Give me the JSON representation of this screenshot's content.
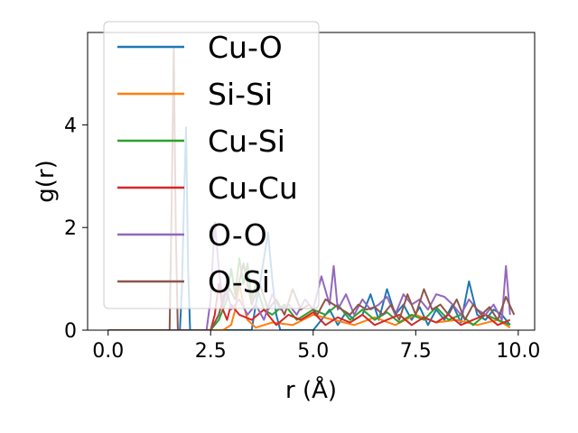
{
  "chart_data": {
    "type": "line",
    "xlabel": "r (Å)",
    "ylabel": "g(r)",
    "xlim": [
      -0.5,
      10.4
    ],
    "ylim": [
      0,
      5.8
    ],
    "xticks": [
      "0.0",
      "2.5",
      "5.0",
      "7.5",
      "10.0"
    ],
    "yticks": [
      "0",
      "2",
      "4"
    ],
    "grid": false,
    "legend": "upper-left",
    "series": [
      {
        "name": "Cu-O",
        "color": "#1f77b4",
        "x": [
          0.0,
          1.6,
          1.75,
          1.8,
          1.85,
          1.9,
          1.95,
          2.0,
          2.05,
          2.1,
          3.5,
          3.6,
          3.7,
          3.8,
          3.9,
          4.0,
          4.1,
          4.2,
          5.0,
          5.2,
          5.4,
          5.6,
          5.8,
          6.0,
          6.2,
          6.4,
          6.6,
          6.8,
          7.0,
          7.2,
          7.4,
          7.6,
          7.8,
          8.0,
          8.2,
          8.4,
          8.6,
          8.8,
          9.0,
          9.2,
          9.4,
          9.6,
          9.8
        ],
        "y": [
          0.0,
          0.0,
          0.0,
          0.8,
          2.5,
          3.95,
          1.2,
          0.0,
          0.0,
          0.0,
          0.0,
          0.5,
          0.9,
          1.4,
          1.9,
          1.0,
          0.3,
          0.0,
          0.0,
          0.2,
          0.4,
          0.1,
          0.35,
          0.2,
          0.3,
          0.7,
          0.2,
          0.8,
          0.3,
          0.5,
          0.2,
          0.45,
          0.1,
          0.4,
          0.2,
          0.5,
          0.15,
          0.95,
          0.3,
          0.2,
          0.4,
          0.3,
          0.1
        ]
      },
      {
        "name": "Si-Si",
        "color": "#ff7f0e",
        "x": [
          0.0,
          2.8,
          3.0,
          3.1,
          3.2,
          3.3,
          3.4,
          3.6,
          4.0,
          4.5,
          5.0,
          5.5,
          6.0,
          6.5,
          7.0,
          7.5,
          8.0,
          8.5,
          9.0,
          9.5,
          9.8
        ],
        "y": [
          0.0,
          0.0,
          0.1,
          0.4,
          0.9,
          0.5,
          0.2,
          0.05,
          0.15,
          0.1,
          0.3,
          0.2,
          0.1,
          0.25,
          0.1,
          0.3,
          0.15,
          0.2,
          0.1,
          0.2,
          0.05
        ]
      },
      {
        "name": "Cu-Si",
        "color": "#2ca02c",
        "x": [
          0.0,
          2.5,
          2.7,
          2.9,
          3.0,
          3.1,
          3.2,
          3.3,
          3.4,
          3.5,
          3.6,
          3.8,
          4.0,
          4.3,
          4.6,
          5.0,
          5.3,
          5.6,
          5.9,
          6.2,
          6.5,
          6.8,
          7.1,
          7.4,
          7.7,
          8.0,
          8.3,
          8.6,
          8.9,
          9.2,
          9.5,
          9.8
        ],
        "y": [
          0.0,
          0.0,
          0.2,
          0.6,
          1.2,
          0.7,
          1.4,
          0.9,
          1.3,
          0.6,
          0.9,
          0.4,
          0.3,
          0.5,
          0.2,
          0.4,
          0.3,
          0.5,
          0.2,
          0.4,
          0.2,
          0.35,
          0.15,
          0.3,
          0.2,
          0.45,
          0.2,
          0.3,
          0.1,
          0.3,
          0.2,
          0.1
        ]
      },
      {
        "name": "Cu-Cu",
        "color": "#d62728",
        "x": [
          0.0,
          2.5,
          2.6,
          2.7,
          2.8,
          2.9,
          3.0,
          3.2,
          3.5,
          3.8,
          4.1,
          4.4,
          4.7,
          5.0,
          5.3,
          5.6,
          5.9,
          6.2,
          6.5,
          6.8,
          7.1,
          7.4,
          7.7,
          8.0,
          8.3,
          8.6,
          8.9,
          9.2,
          9.5,
          9.8
        ],
        "y": [
          0.0,
          0.0,
          0.3,
          0.9,
          0.4,
          0.2,
          0.5,
          0.3,
          0.2,
          0.4,
          0.1,
          0.3,
          0.2,
          0.35,
          0.1,
          0.25,
          0.15,
          0.3,
          0.1,
          0.2,
          0.3,
          0.1,
          0.25,
          0.15,
          0.3,
          0.1,
          0.2,
          0.3,
          0.1,
          0.2
        ]
      },
      {
        "name": "O-O",
        "color": "#9467bd",
        "x": [
          0.0,
          2.4,
          2.5,
          2.6,
          2.7,
          2.8,
          2.9,
          3.0,
          3.2,
          3.4,
          3.6,
          3.8,
          4.0,
          4.2,
          4.4,
          4.6,
          4.8,
          5.0,
          5.2,
          5.4,
          5.5,
          5.6,
          5.8,
          6.0,
          6.2,
          6.4,
          6.6,
          6.8,
          7.0,
          7.2,
          7.4,
          7.6,
          7.8,
          8.0,
          8.2,
          8.4,
          8.6,
          8.8,
          9.0,
          9.2,
          9.4,
          9.6,
          9.7,
          9.8
        ],
        "y": [
          0.0,
          0.0,
          0.6,
          2.1,
          1.2,
          0.5,
          0.8,
          0.4,
          0.6,
          0.3,
          0.5,
          0.2,
          0.7,
          0.4,
          0.5,
          0.3,
          0.6,
          0.4,
          1.05,
          0.5,
          1.25,
          0.4,
          0.7,
          0.3,
          0.6,
          0.4,
          0.5,
          0.65,
          0.3,
          0.7,
          0.5,
          0.6,
          0.4,
          0.7,
          0.65,
          0.5,
          0.3,
          0.6,
          0.4,
          0.3,
          0.5,
          0.2,
          1.25,
          0.3
        ]
      },
      {
        "name": "O-Si",
        "color": "#8c564b",
        "x": [
          0.0,
          1.5,
          1.55,
          1.6,
          1.65,
          1.7,
          1.8,
          2.5,
          2.7,
          2.9,
          3.1,
          3.3,
          3.5,
          3.7,
          3.9,
          4.1,
          4.3,
          4.5,
          4.7,
          4.9,
          5.1,
          5.3,
          5.5,
          5.7,
          5.9,
          6.1,
          6.3,
          6.5,
          6.7,
          6.9,
          7.1,
          7.3,
          7.5,
          7.7,
          7.9,
          8.1,
          8.3,
          8.5,
          8.7,
          8.9,
          9.1,
          9.3,
          9.5,
          9.7,
          9.9
        ],
        "y": [
          0.0,
          0.0,
          2.5,
          5.5,
          2.0,
          0.0,
          0.0,
          0.0,
          0.3,
          0.9,
          0.6,
          1.3,
          0.5,
          0.9,
          0.4,
          0.6,
          0.3,
          0.8,
          0.4,
          0.5,
          0.3,
          0.6,
          0.5,
          0.4,
          0.3,
          0.5,
          0.4,
          0.45,
          0.3,
          0.5,
          0.2,
          0.7,
          0.3,
          0.8,
          0.4,
          0.5,
          0.3,
          0.6,
          0.2,
          0.5,
          0.3,
          0.45,
          0.2,
          0.65,
          0.3
        ]
      }
    ]
  }
}
